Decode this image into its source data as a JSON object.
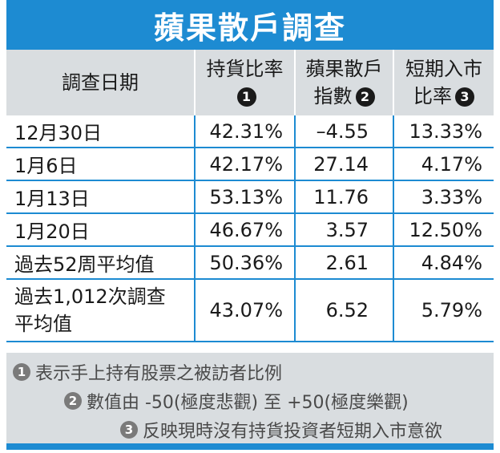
{
  "title": "蘋果散戶調查",
  "header": {
    "col1": "調查日期",
    "col2_line1": "持貨比率",
    "col2_badge": "1",
    "col3_line1": "蘋果散戶",
    "col3_line2": "指數",
    "col3_badge": "2",
    "col4_line1": "短期入市",
    "col4_line2": "比率",
    "col4_badge": "3"
  },
  "rows": [
    {
      "date": "12月30日",
      "holding": "42.31%",
      "index": "–4.55",
      "entry": "13.33%"
    },
    {
      "date": "1月6日",
      "holding": "42.17%",
      "index": "27.14",
      "entry": "4.17%"
    },
    {
      "date": "1月13日",
      "holding": "53.13%",
      "index": "11.76",
      "entry": "3.33%"
    },
    {
      "date": "1月20日",
      "holding": "46.67%",
      "index": "3.57",
      "entry": "12.50%"
    },
    {
      "date": "過去52周平均值",
      "holding": "50.36%",
      "index": "2.61",
      "entry": "4.84%"
    },
    {
      "date_line1": "過去1,012次調查",
      "date_line2": "平均值",
      "holding": "43.07%",
      "index": "6.52",
      "entry": "5.79%"
    }
  ],
  "notes": [
    {
      "badge": "1",
      "text": "表示手上持有股票之被訪者比例"
    },
    {
      "badge": "2",
      "text": "數值由 -50(極度悲觀) 至 +50(極度樂觀)"
    },
    {
      "badge": "3",
      "text": "反映現時沒有持貨投資者短期入市意欲"
    }
  ],
  "colors": {
    "accent_blue": "#1d8bd2",
    "header_gray": "#d9dde0"
  }
}
